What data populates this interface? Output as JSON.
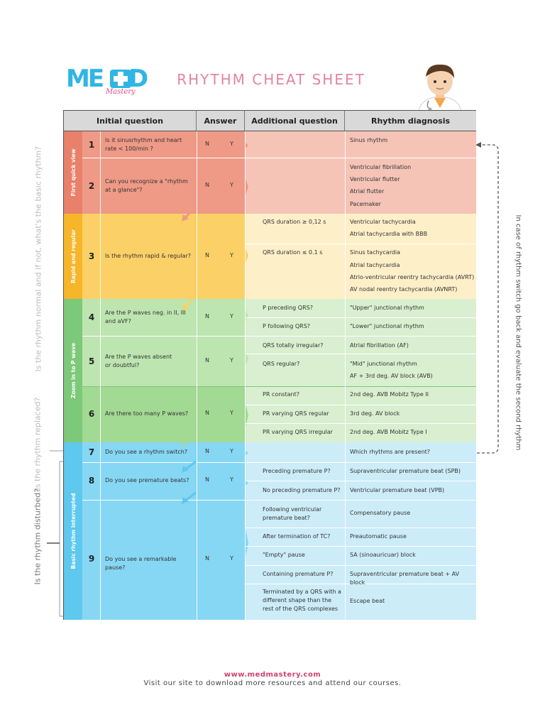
{
  "brand": {
    "logo_text": "MED",
    "logo_sub": "Mastery"
  },
  "title": "RHYTHM CHEAT SHEET",
  "headers": {
    "initial": "Initial question",
    "answer": "Answer",
    "additional": "Additional question",
    "diagnosis": "Rhythm diagnosis"
  },
  "sections": {
    "first": "First quick view",
    "rapid": "Rapid and regular",
    "zoom": "Zoom in to P wave",
    "basic": "Basic rhythm interrupted"
  },
  "side": {
    "normal": "Is the rhythm normal and if not, what's the basic rhythm?",
    "replaced": "Is the rhythm replaced?",
    "disturbed": "Is the rhythm disturbed?",
    "switch": "In case of rhythm switch go back and evaluate the second rhythm"
  },
  "yn": {
    "n": "N",
    "y": "Y"
  },
  "rows": [
    {
      "num": "1",
      "question": "Is it sinusrhythm and heart rate < 100/min ?"
    },
    {
      "num": "2",
      "question": "Can you recognize a \"rhythm at a glance\"?"
    },
    {
      "num": "3",
      "question": "Is the rhythm rapid & regular?"
    },
    {
      "num": "4",
      "question": "Are the P waves neg. in II, III and aVF?"
    },
    {
      "num": "5",
      "question": "Are the P waves absent or doubtful?"
    },
    {
      "num": "6",
      "question": "Are there too many P waves?"
    },
    {
      "num": "7",
      "question": "Do you see a rhythm switch?"
    },
    {
      "num": "8",
      "question": "Do you see premature beats?"
    },
    {
      "num": "9",
      "question": "Do you see a remarkable pause?"
    }
  ],
  "additional": [
    "QRS duration ≥ 0,12 s",
    "QRS duration ≤ 0.1 s",
    "P preceding QRS?",
    "P following QRS?",
    "QRS totally irregular?",
    "QRS regular?",
    "PR constant?",
    "PR varying QRS regular",
    "PR varying QRS irregular",
    "Preceding premature P?",
    "No preceding premature P?",
    "Following ventricular premature beat?",
    "After termination of TC?",
    "\"Empty\" pause",
    "Containing premature P?",
    "Terminated by a QRS with a different shape than the rest of the QRS complexes"
  ],
  "diagnosis": [
    "Sinus rhythm",
    "Ventricular fibrillation",
    "Ventricular flutter",
    "Atrial flutter",
    "Pacemaker",
    "Ventricular tachycardia",
    "Atrial tachycardia with BBB",
    "Sinus tachycardia",
    "Atrial tachycardia",
    "Atrio-ventricular reentry tachycardia (AVRT)",
    "AV nodal reentry tachycardia (AVNRT)",
    "\"Upper\" junctional rhythm",
    "\"Lower\" junctional rhythm",
    "Atrial fibrillation (AF)",
    "\"Mid\" junctional rhythm",
    "AF + 3rd deg. AV block (AVB)",
    "2nd deg. AVB Mobitz Type II",
    "3rd deg. AV block",
    "2nd deg. AVB Mobitz Type I",
    "Which rhythms are present?",
    "Supraventricular premature beat (SPB)",
    "Ventricular premature beat (VPB)",
    "Compensatory pause",
    "Preautomatic pause",
    "SA (sinoauricuar) block",
    "Supraventricular premature beat + AV block",
    "Escape beat"
  ],
  "footer": {
    "url": "www.medmastery.com",
    "text": "Visit our site to download more resources and attend our courses."
  },
  "colors": {
    "red_dark": "#e8806a",
    "red_mid": "#ee9a86",
    "red_light": "#f5c4b6",
    "yellow_dark": "#f7b52a",
    "yellow_mid": "#fbd066",
    "yellow_light": "#fdefc8",
    "green_dark": "#7dc97a",
    "green_mid": "#a9dc9b",
    "green_light": "#d9efd0",
    "blue_dark": "#5ec8ef",
    "blue_mid": "#86d7f4",
    "blue_light": "#ccecf8",
    "title_pink": "#e384a4",
    "logo_blue": "#2fb6e4",
    "logo_pink": "#e84a87"
  }
}
